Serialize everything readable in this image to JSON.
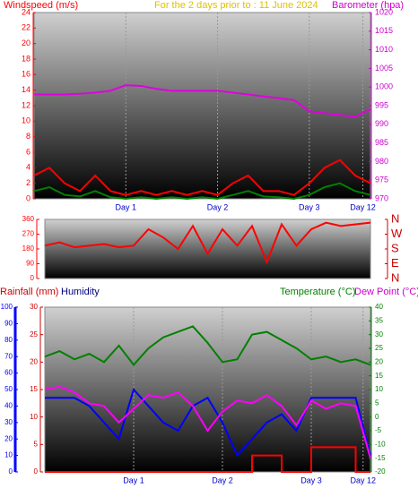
{
  "chart_data": [
    {
      "type": "line",
      "title": "For the 2 days prior to : 11 June 2024",
      "xlim": [
        0,
        88
      ],
      "xticks": [
        {
          "value": 24,
          "label": "Day 1"
        },
        {
          "value": 48,
          "label": "Day 2"
        },
        {
          "value": 72,
          "label": "Day 3"
        },
        {
          "value": 86,
          "label": "Day 12"
        }
      ],
      "axes": [
        {
          "label": "Windspeed (m/s)",
          "color": "#ff0000",
          "side": "left",
          "lim": [
            0,
            24
          ],
          "ticks": [
            0,
            2,
            4,
            6,
            8,
            10,
            12,
            14,
            16,
            18,
            20,
            22,
            24
          ]
        },
        {
          "label": "Barometer (hpa)",
          "color": "#cc00cc",
          "side": "right",
          "lim": [
            970,
            1020
          ],
          "ticks": [
            970,
            975,
            980,
            985,
            990,
            995,
            1000,
            1005,
            1010,
            1015,
            1020
          ]
        }
      ],
      "x": [
        0,
        4,
        8,
        12,
        16,
        20,
        24,
        28,
        32,
        36,
        40,
        44,
        48,
        52,
        56,
        60,
        64,
        68,
        72,
        76,
        80,
        84,
        88
      ],
      "series": [
        {
          "color": "#ff0000",
          "axis": 0,
          "values": [
            3,
            4,
            2,
            1,
            3,
            1,
            0.5,
            1,
            0.5,
            1,
            0.5,
            1,
            0.5,
            2,
            3,
            1,
            1,
            0.5,
            2,
            4,
            5,
            3,
            2
          ]
        },
        {
          "color": "#008000",
          "axis": 0,
          "values": [
            1,
            1.5,
            0.5,
            0.3,
            1,
            0.2,
            0,
            0.2,
            0,
            0.2,
            0,
            0.2,
            0,
            0.5,
            1,
            0.3,
            0.2,
            0,
            0.5,
            1.5,
            2,
            1,
            0.5
          ]
        },
        {
          "color": "#e000e0",
          "axis": 1,
          "values": [
            998,
            998,
            998,
            998.2,
            998.5,
            999,
            1000.5,
            1000.3,
            999.5,
            999,
            999,
            999,
            999,
            998.5,
            998,
            997.5,
            997,
            996.5,
            993.5,
            993,
            992.5,
            992,
            994
          ]
        }
      ]
    },
    {
      "type": "line",
      "xlim": [
        0,
        88
      ],
      "axes": [
        {
          "color": "#ff0000",
          "side": "left",
          "lim": [
            0,
            360
          ],
          "ticks": [
            0,
            90,
            180,
            270,
            360
          ]
        },
        {
          "color": "#cc0000",
          "side": "right",
          "lim": [
            0,
            360
          ],
          "ticks": [
            {
              "value": 0,
              "label": "N"
            },
            {
              "value": 90,
              "label": "E"
            },
            {
              "value": 180,
              "label": "S"
            },
            {
              "value": 270,
              "label": "W"
            },
            {
              "value": 360,
              "label": "N"
            }
          ]
        }
      ],
      "x": [
        0,
        4,
        8,
        12,
        16,
        20,
        24,
        28,
        32,
        36,
        40,
        44,
        48,
        52,
        56,
        60,
        64,
        68,
        72,
        76,
        80,
        84,
        88
      ],
      "series": [
        {
          "color": "#ff0000",
          "axis": 0,
          "values": [
            200,
            220,
            190,
            200,
            210,
            190,
            200,
            300,
            250,
            180,
            320,
            150,
            300,
            200,
            320,
            100,
            330,
            200,
            300,
            340,
            320,
            330,
            340
          ]
        }
      ]
    },
    {
      "type": "line",
      "xlim": [
        0,
        88
      ],
      "xticks": [
        {
          "value": 24,
          "label": "Day 1"
        },
        {
          "value": 48,
          "label": "Day 2"
        },
        {
          "value": 72,
          "label": "Day 3"
        },
        {
          "value": 86,
          "label": "Day 12"
        }
      ],
      "axes": [
        {
          "color": "#0000ff",
          "side": "left",
          "lim": [
            0,
            100
          ],
          "ticks": [
            0,
            10,
            20,
            30,
            40,
            50,
            60,
            70,
            80,
            90,
            100
          ]
        },
        {
          "color": "#cc0000",
          "side": "left",
          "lim": [
            0,
            30
          ],
          "ticks": [
            0,
            5,
            10,
            15,
            20,
            25,
            30
          ]
        },
        {
          "color": "#008000",
          "side": "right",
          "lim": [
            -20,
            40
          ],
          "ticks": [
            -20,
            -15,
            -10,
            -5,
            0,
            5,
            10,
            15,
            20,
            25,
            30,
            35,
            40
          ]
        }
      ],
      "x": [
        0,
        4,
        8,
        12,
        16,
        20,
        24,
        28,
        32,
        36,
        40,
        44,
        48,
        52,
        56,
        60,
        64,
        68,
        72,
        76,
        80,
        84,
        88
      ],
      "series": [
        {
          "name": "Rainfall (mm)",
          "color": "#ff0000",
          "axis": 1,
          "step": true,
          "values": [
            0,
            0,
            0,
            0,
            0,
            0,
            0,
            0,
            0,
            0,
            0,
            0,
            0,
            0,
            3,
            3,
            0,
            0,
            4.5,
            4.5,
            4.5,
            0,
            0
          ]
        },
        {
          "name": "Humidity",
          "color": "#0000ff",
          "axis": 0,
          "values": [
            45,
            45,
            45,
            40,
            30,
            20,
            50,
            40,
            30,
            25,
            40,
            45,
            30,
            10,
            20,
            30,
            35,
            25,
            45,
            45,
            45,
            45,
            10
          ]
        },
        {
          "name": "Temperature (°C)",
          "color": "#008000",
          "axis": 2,
          "values": [
            22,
            24,
            21,
            23,
            20,
            26,
            19,
            25,
            29,
            31,
            33,
            27,
            20,
            21,
            30,
            31,
            28,
            25,
            21,
            22,
            20,
            21,
            19
          ]
        },
        {
          "name": "Dew Point (°C)",
          "color": "#ff00ff",
          "axis": 2,
          "values": [
            10,
            11,
            9,
            5,
            4,
            -2,
            3,
            8,
            7,
            9,
            4,
            -5,
            2,
            6,
            5,
            8,
            4,
            -3,
            6,
            3,
            5,
            4,
            -15
          ]
        }
      ]
    }
  ]
}
